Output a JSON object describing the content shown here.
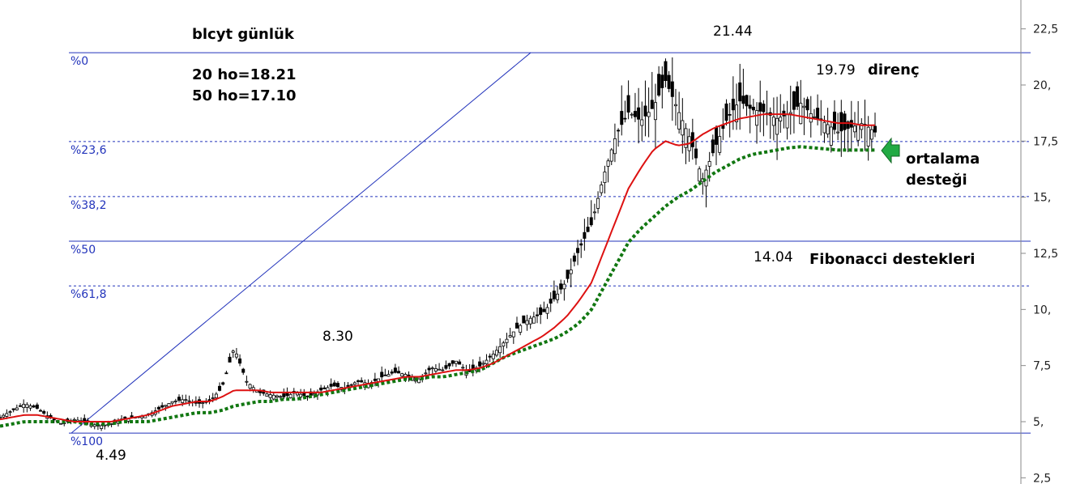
{
  "chart_data": {
    "type": "candlestick",
    "title": "blcyt günlük",
    "ma_labels": [
      "20 ho=18.21",
      "50 ho=17.10"
    ],
    "y_axis": {
      "ylim": [
        2.5,
        23.0
      ],
      "ticks": [
        {
          "value": 22.5,
          "label": "22,5"
        },
        {
          "value": 20.0,
          "label": "20,"
        },
        {
          "value": 17.5,
          "label": "17,5"
        },
        {
          "value": 15.0,
          "label": "15,"
        },
        {
          "value": 12.5,
          "label": "12,5"
        },
        {
          "value": 10.0,
          "label": "10,"
        },
        {
          "value": 7.5,
          "label": "7,5"
        },
        {
          "value": 5.0,
          "label": "5,"
        },
        {
          "value": 2.5,
          "label": "2,5"
        }
      ]
    },
    "fibonacci_levels": [
      {
        "label": "%0",
        "value": 21.44,
        "style": "solid"
      },
      {
        "label": "%23,6",
        "value": 17.48,
        "style": "dashed"
      },
      {
        "label": "%38,2",
        "value": 15.03,
        "style": "dashed"
      },
      {
        "label": "%50",
        "value": 13.04,
        "style": "solid"
      },
      {
        "label": "%61,8",
        "value": 11.05,
        "style": "dashed"
      },
      {
        "label": "%100",
        "value": 4.49,
        "style": "solid"
      }
    ],
    "trendline": {
      "start_value": 4.49,
      "end_value": 21.44
    },
    "annotations": {
      "high": "21.44",
      "resistance_value": "19.79",
      "resistance_label": "direnç",
      "support_ma_label_1": "ortalama",
      "support_ma_label_2": "desteği",
      "low_after_high": "14.04",
      "fib_support_label": "Fibonacci destekleri",
      "peak_small": "8.30",
      "bottom": "4.49"
    },
    "ma_colors": {
      "ma20": "#dd1111",
      "ma50": "#117711"
    },
    "arrow_color": "#22aa44",
    "price_path": [
      5.2,
      5.5,
      5.8,
      5.6,
      5.2,
      4.9,
      5.1,
      5.0,
      4.8,
      4.9,
      5.1,
      5.2,
      5.3,
      5.6,
      5.9,
      6.0,
      5.8,
      5.9,
      6.5,
      8.3,
      6.8,
      6.3,
      6.2,
      6.1,
      6.3,
      6.1,
      6.4,
      6.6,
      6.5,
      6.8,
      6.7,
      7.0,
      7.2,
      7.1,
      6.9,
      7.4,
      7.3,
      7.7,
      7.2,
      7.5,
      8.0,
      8.6,
      9.2,
      9.6,
      9.8,
      10.5,
      11.3,
      12.7,
      13.8,
      16.0,
      17.8,
      18.8,
      18.4,
      19.0,
      20.2,
      18.9,
      17.6,
      15.8,
      17.2,
      18.5,
      19.3,
      18.9,
      18.8,
      18.5,
      18.7,
      19.2,
      18.6,
      18.3,
      17.9,
      18.1,
      18.3,
      17.9
    ],
    "ma20_path": [
      5.1,
      5.2,
      5.3,
      5.3,
      5.2,
      5.1,
      5.0,
      5.0,
      5.0,
      5.0,
      5.1,
      5.2,
      5.3,
      5.5,
      5.7,
      5.8,
      5.9,
      5.9,
      6.1,
      6.4,
      6.4,
      6.4,
      6.3,
      6.3,
      6.3,
      6.3,
      6.3,
      6.4,
      6.5,
      6.6,
      6.7,
      6.8,
      6.9,
      7.0,
      7.0,
      7.1,
      7.2,
      7.3,
      7.3,
      7.4,
      7.6,
      7.9,
      8.2,
      8.5,
      8.8,
      9.2,
      9.7,
      10.4,
      11.2,
      12.6,
      14.0,
      15.4,
      16.3,
      17.1,
      17.5,
      17.3,
      17.4,
      17.8,
      18.1,
      18.3,
      18.5,
      18.6,
      18.7,
      18.7,
      18.7,
      18.6,
      18.5,
      18.4,
      18.3,
      18.3,
      18.2,
      18.21
    ],
    "ma50_path": [
      4.8,
      4.9,
      5.0,
      5.0,
      5.0,
      5.0,
      5.0,
      4.9,
      4.9,
      4.9,
      5.0,
      5.0,
      5.0,
      5.1,
      5.2,
      5.3,
      5.4,
      5.4,
      5.5,
      5.7,
      5.8,
      5.9,
      5.9,
      6.0,
      6.0,
      6.1,
      6.2,
      6.3,
      6.4,
      6.5,
      6.6,
      6.7,
      6.8,
      6.9,
      6.9,
      7.0,
      7.0,
      7.1,
      7.2,
      7.3,
      7.6,
      7.9,
      8.1,
      8.3,
      8.5,
      8.7,
      9.0,
      9.4,
      10.0,
      11.0,
      12.0,
      13.0,
      13.6,
      14.1,
      14.6,
      15.0,
      15.3,
      15.7,
      16.1,
      16.4,
      16.7,
      16.9,
      17.0,
      17.1,
      17.2,
      17.25,
      17.2,
      17.15,
      17.1,
      17.1,
      17.1,
      17.1
    ]
  }
}
